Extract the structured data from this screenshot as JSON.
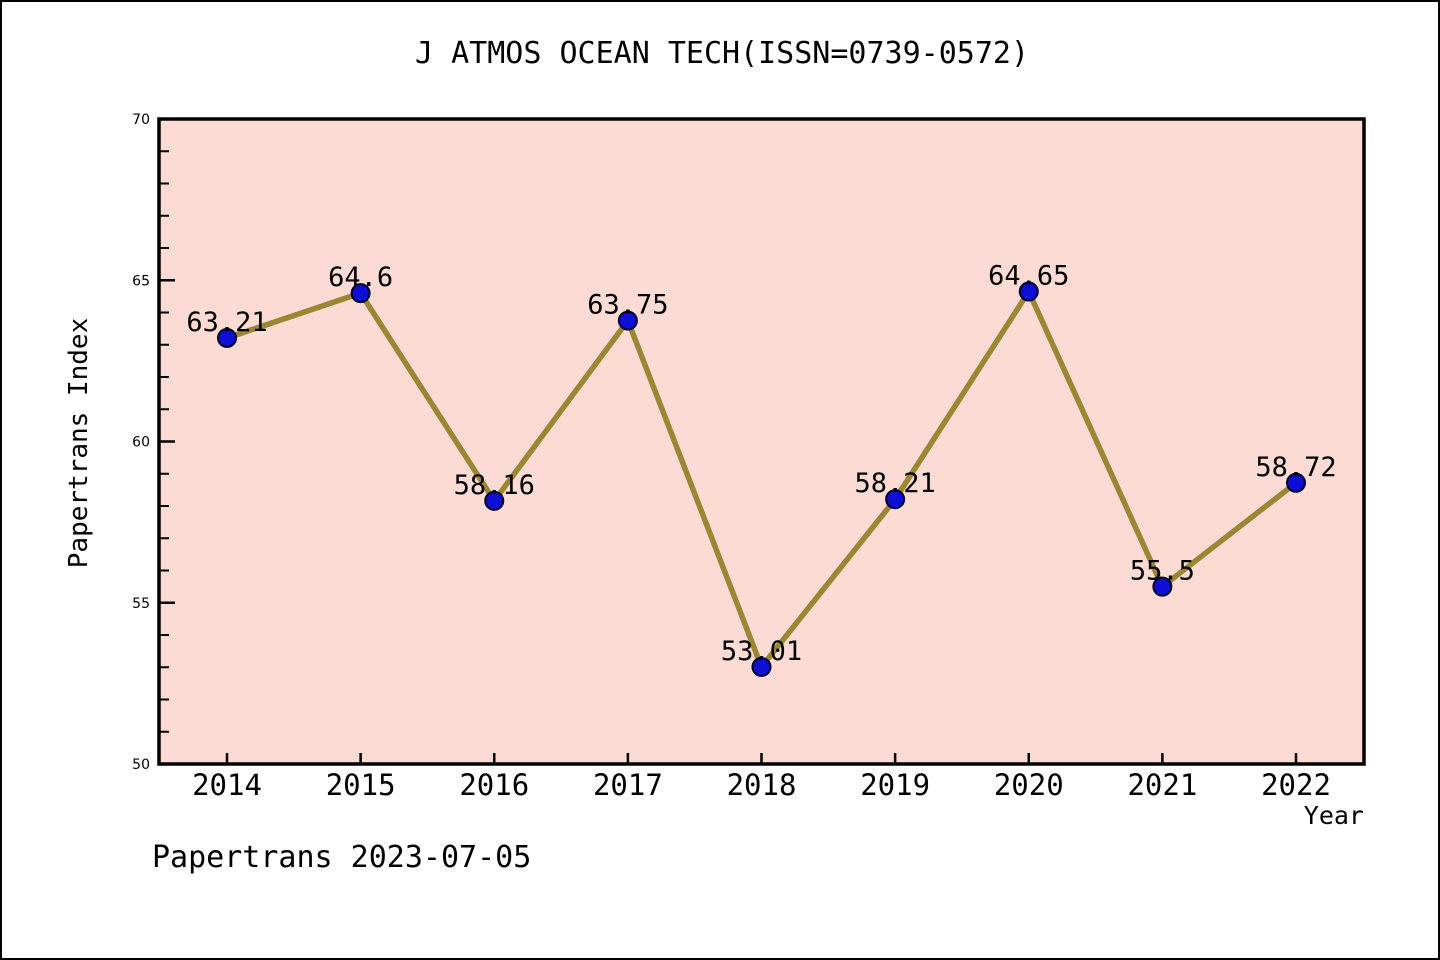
{
  "title": "J ATMOS OCEAN TECH(ISSN=0739-0572)",
  "footer": "Papertrans 2023-07-05",
  "chart_data": {
    "type": "line",
    "title": "J ATMOS OCEAN TECH(ISSN=0739-0572)",
    "x": [
      2014,
      2015,
      2016,
      2017,
      2018,
      2019,
      2020,
      2021,
      2022
    ],
    "values": [
      63.21,
      64.6,
      58.16,
      63.75,
      53.01,
      58.21,
      64.65,
      55.5,
      58.72
    ],
    "labels": [
      "63.21",
      "64.6",
      "58.16",
      "63.75",
      "53.01",
      "58.21",
      "64.65",
      "55.5",
      "58.72"
    ],
    "xlabel": "Year",
    "ylabel": "Papertrans Index",
    "ylim": [
      50,
      70
    ],
    "y_major_ticks": [
      50,
      55,
      60,
      65,
      70
    ],
    "y_minor_step": 1,
    "grid": false,
    "legend": null,
    "annotation": "Papertrans 2023-07-05",
    "colors": {
      "plot_bg": "#fcdbd4",
      "line": "#9a8733",
      "marker": "#0e0ed6",
      "marker_edge": "#000028",
      "axis": "#000000",
      "text": "#000000",
      "page_bg": "#ffffff"
    }
  }
}
